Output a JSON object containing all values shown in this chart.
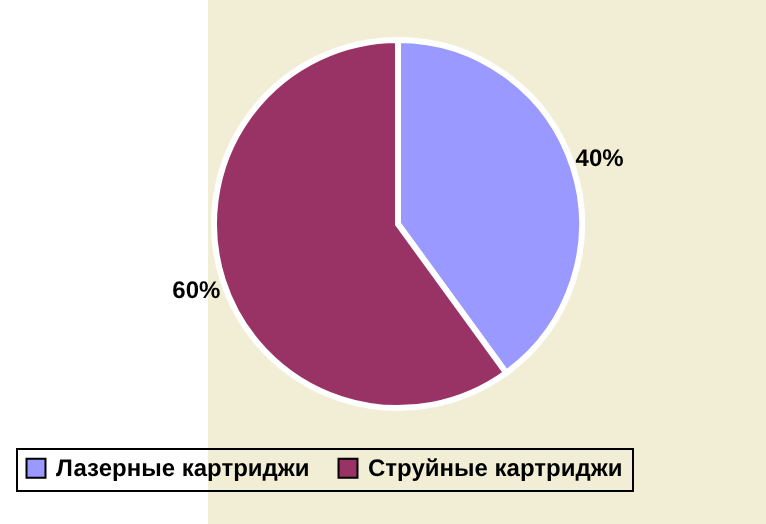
{
  "chart_data": {
    "type": "pie",
    "categories": [
      "Лазерные картриджи",
      "Струйные картриджи"
    ],
    "values": [
      40,
      60
    ],
    "colors": [
      "#9999ff",
      "#993366"
    ],
    "value_labels": [
      "40%",
      "60%"
    ],
    "legend": "bottom"
  }
}
